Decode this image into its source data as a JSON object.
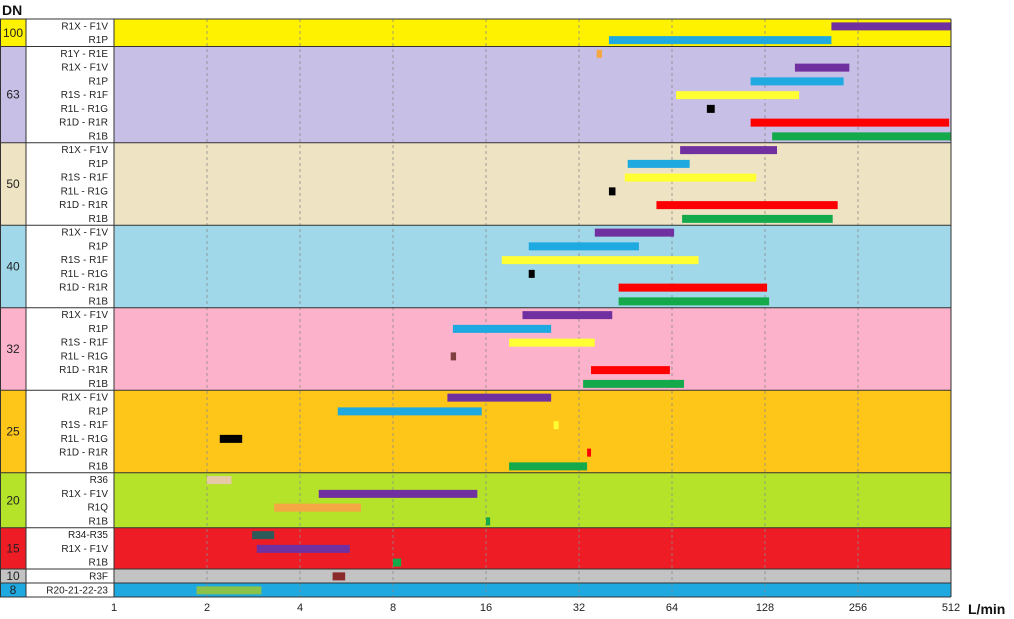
{
  "chart_data": {
    "type": "bar",
    "orientation": "horizontal-range",
    "x_scale": "log2",
    "xlim": [
      1,
      512
    ],
    "x_ticks": [
      "1",
      "2",
      "4",
      "8",
      "16",
      "32",
      "64",
      "128",
      "256",
      "512"
    ],
    "xlabel": "L/min",
    "ylabel": "DN",
    "grid": true,
    "groups": [
      {
        "dn": "100",
        "color": "#FFF200",
        "rows": [
          {
            "label": "R1X - F1V",
            "bars": [
              {
                "from": 210,
                "to": 512,
                "color": "#7030A0"
              }
            ]
          },
          {
            "label": "R1P",
            "bars": [
              {
                "from": 40,
                "to": 210,
                "color": "#1FA9E1"
              }
            ]
          }
        ]
      },
      {
        "dn": "63",
        "color": "#C8BFE7",
        "rows": [
          {
            "label": "R1Y - R1E",
            "bars": [
              {
                "from": 36.5,
                "to": 38,
                "color": "#F4A742"
              }
            ]
          },
          {
            "label": "R1X - F1V",
            "bars": [
              {
                "from": 160,
                "to": 240,
                "color": "#7030A0"
              }
            ]
          },
          {
            "label": "R1P",
            "bars": [
              {
                "from": 115,
                "to": 230,
                "color": "#1FA9E1"
              }
            ]
          },
          {
            "label": "R1S - R1F",
            "bars": [
              {
                "from": 66,
                "to": 165,
                "color": "#FFFF33"
              }
            ]
          },
          {
            "label": "R1L - R1G",
            "bars": [
              {
                "from": 83,
                "to": 88,
                "color": "#000000"
              }
            ]
          },
          {
            "label": "R1D - R1R",
            "bars": [
              {
                "from": 115,
                "to": 505,
                "color": "#FF0000"
              }
            ]
          },
          {
            "label": "R1B",
            "bars": [
              {
                "from": 135,
                "to": 512,
                "color": "#14A94B"
              }
            ]
          }
        ]
      },
      {
        "dn": "50",
        "color": "#EEE4C3",
        "rows": [
          {
            "label": "R1X - F1V",
            "bars": [
              {
                "from": 68,
                "to": 140,
                "color": "#7030A0"
              }
            ]
          },
          {
            "label": "R1P",
            "bars": [
              {
                "from": 46,
                "to": 73,
                "color": "#1FA9E1"
              }
            ]
          },
          {
            "label": "R1S - R1F",
            "bars": [
              {
                "from": 45,
                "to": 120,
                "color": "#FFFF33"
              }
            ]
          },
          {
            "label": "R1L - R1G",
            "bars": [
              {
                "from": 40,
                "to": 42,
                "color": "#000000"
              }
            ]
          },
          {
            "label": "R1D - R1R",
            "bars": [
              {
                "from": 57,
                "to": 220,
                "color": "#FF0000"
              }
            ]
          },
          {
            "label": "R1B",
            "bars": [
              {
                "from": 69,
                "to": 212,
                "color": "#14A94B"
              }
            ]
          }
        ]
      },
      {
        "dn": "40",
        "color": "#A0D8EA",
        "rows": [
          {
            "label": "R1X - F1V",
            "bars": [
              {
                "from": 36,
                "to": 65,
                "color": "#7030A0"
              }
            ]
          },
          {
            "label": "R1P",
            "bars": [
              {
                "from": 22,
                "to": 50,
                "color": "#1FA9E1"
              }
            ]
          },
          {
            "label": "R1S - R1F",
            "bars": [
              {
                "from": 18,
                "to": 78,
                "color": "#FFFF33"
              }
            ]
          },
          {
            "label": "R1L - R1G",
            "bars": [
              {
                "from": 22,
                "to": 23,
                "color": "#000000"
              }
            ]
          },
          {
            "label": "R1D - R1R",
            "bars": [
              {
                "from": 43,
                "to": 130,
                "color": "#FF0000"
              }
            ]
          },
          {
            "label": "R1B",
            "bars": [
              {
                "from": 43,
                "to": 132,
                "color": "#14A94B"
              }
            ]
          }
        ]
      },
      {
        "dn": "32",
        "color": "#FDB2CC",
        "rows": [
          {
            "label": "R1X - F1V",
            "bars": [
              {
                "from": 21,
                "to": 41,
                "color": "#7030A0"
              }
            ]
          },
          {
            "label": "R1P",
            "bars": [
              {
                "from": 12.5,
                "to": 26,
                "color": "#1FA9E1"
              }
            ]
          },
          {
            "label": "R1S - R1F",
            "bars": [
              {
                "from": 19,
                "to": 36,
                "color": "#FFFF33"
              }
            ]
          },
          {
            "label": "R1L - R1G",
            "bars": [
              {
                "from": 12.3,
                "to": 12.8,
                "color": "#7F3F3F"
              }
            ]
          },
          {
            "label": "R1D - R1R",
            "bars": [
              {
                "from": 35,
                "to": 63,
                "color": "#FF0000"
              }
            ]
          },
          {
            "label": "R1B",
            "bars": [
              {
                "from": 33,
                "to": 70,
                "color": "#14A94B"
              }
            ]
          }
        ]
      },
      {
        "dn": "25",
        "color": "#FFC61A",
        "rows": [
          {
            "label": "R1X - F1V",
            "bars": [
              {
                "from": 12,
                "to": 26,
                "color": "#7030A0"
              }
            ]
          },
          {
            "label": "R1P",
            "bars": [
              {
                "from": 5.3,
                "to": 15.5,
                "color": "#1FA9E1"
              }
            ]
          },
          {
            "label": "R1S - R1F",
            "bars": [
              {
                "from": 26.5,
                "to": 27.5,
                "color": "#FFFF33"
              }
            ]
          },
          {
            "label": "R1L - R1G",
            "bars": [
              {
                "from": 2.2,
                "to": 2.6,
                "color": "#000000"
              }
            ]
          },
          {
            "label": "R1D - R1R",
            "bars": [
              {
                "from": 34,
                "to": 35,
                "color": "#FF0000"
              }
            ]
          },
          {
            "label": "R1B",
            "bars": [
              {
                "from": 19,
                "to": 34,
                "color": "#14A94B"
              }
            ]
          }
        ]
      },
      {
        "dn": "20",
        "color": "#B5E32A",
        "rows": [
          {
            "label": "R36",
            "bars": [
              {
                "from": 2,
                "to": 2.4,
                "color": "#E6C9A6"
              }
            ]
          },
          {
            "label": "R1X - F1V",
            "bars": [
              {
                "from": 4.6,
                "to": 15,
                "color": "#7030A0"
              }
            ]
          },
          {
            "label": "R1Q",
            "bars": [
              {
                "from": 3.3,
                "to": 6.3,
                "color": "#F4A742"
              }
            ]
          },
          {
            "label": "R1B",
            "bars": [
              {
                "from": 16,
                "to": 16.5,
                "color": "#14A94B"
              }
            ]
          }
        ]
      },
      {
        "dn": "15",
        "color": "#EE1C25",
        "rows": [
          {
            "label": "R34-R35",
            "bars": [
              {
                "from": 2.8,
                "to": 3.3,
                "color": "#2F5A5A"
              }
            ]
          },
          {
            "label": "R1X - F1V",
            "bars": [
              {
                "from": 2.9,
                "to": 5.8,
                "color": "#7030A0"
              }
            ]
          },
          {
            "label": "R1B",
            "bars": [
              {
                "from": 8,
                "to": 8.5,
                "color": "#14A94B"
              }
            ]
          }
        ]
      },
      {
        "dn": "10",
        "color": "#C3C3C3",
        "rows": [
          {
            "label": "R3F",
            "bars": [
              {
                "from": 5.1,
                "to": 5.6,
                "color": "#8B2A2A"
              }
            ]
          }
        ]
      },
      {
        "dn": "8",
        "color": "#1FA9E1",
        "rows": [
          {
            "label": "R20-21-22-23",
            "bars": [
              {
                "from": 1.85,
                "to": 3,
                "color": "#8BC34A"
              }
            ]
          }
        ]
      }
    ]
  }
}
